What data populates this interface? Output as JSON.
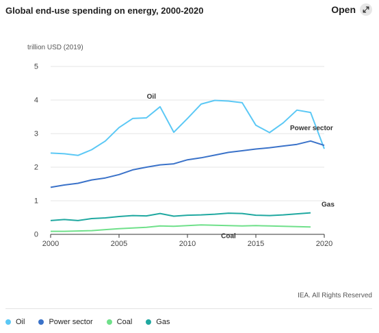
{
  "header": {
    "title": "Global end-use spending on energy, 2000-2020",
    "open_label": "Open",
    "open_icon": "expand-icon"
  },
  "footer": {
    "note": "IEA. All Rights Reserved"
  },
  "chart_data": {
    "type": "line",
    "title": "Global end-use spending on energy, 2000-2020",
    "ylabel": "trillion USD (2019)",
    "xlabel": "",
    "x": [
      2000,
      2001,
      2002,
      2003,
      2004,
      2005,
      2006,
      2007,
      2008,
      2009,
      2010,
      2011,
      2012,
      2013,
      2014,
      2015,
      2016,
      2017,
      2018,
      2019,
      2020
    ],
    "xlim": [
      2000,
      2020
    ],
    "ylim": [
      0,
      5
    ],
    "xticks": [
      2000,
      2005,
      2010,
      2015,
      2020
    ],
    "yticks": [
      0,
      1,
      2,
      3,
      4,
      5
    ],
    "grid": "horizontal",
    "legend": "bottom",
    "series": [
      {
        "name": "Oil",
        "color": "#5bc8f5",
        "values": [
          2.42,
          2.4,
          2.35,
          2.52,
          2.78,
          3.18,
          3.45,
          3.47,
          3.8,
          3.04,
          3.45,
          3.88,
          3.99,
          3.97,
          3.92,
          3.25,
          3.03,
          3.32,
          3.7,
          3.63,
          2.55
        ]
      },
      {
        "name": "Power sector",
        "color": "#3a72c9",
        "values": [
          1.4,
          1.47,
          1.52,
          1.62,
          1.68,
          1.78,
          1.92,
          2.0,
          2.07,
          2.1,
          2.22,
          2.28,
          2.36,
          2.44,
          2.49,
          2.54,
          2.58,
          2.63,
          2.68,
          2.78,
          2.65
        ]
      },
      {
        "name": "Coal",
        "color": "#6fe08a",
        "values": [
          0.09,
          0.09,
          0.1,
          0.11,
          0.14,
          0.17,
          0.19,
          0.21,
          0.25,
          0.24,
          0.26,
          0.28,
          0.27,
          0.26,
          0.25,
          0.26,
          0.25,
          0.24,
          0.23,
          0.22,
          null
        ]
      },
      {
        "name": "Gas",
        "color": "#1fa8a0",
        "values": [
          0.41,
          0.44,
          0.41,
          0.47,
          0.49,
          0.53,
          0.56,
          0.55,
          0.62,
          0.54,
          0.57,
          0.58,
          0.6,
          0.63,
          0.62,
          0.57,
          0.56,
          0.58,
          0.61,
          0.64,
          null
        ]
      }
    ],
    "annotations": [
      {
        "text": "Oil",
        "series": "Oil",
        "x": 2008
      },
      {
        "text": "Power sector",
        "series": "Power sector",
        "x": 2019
      },
      {
        "text": "Gas",
        "series": "Gas",
        "x": 2019
      },
      {
        "text": "Coal",
        "series": "Coal",
        "x": 2013
      }
    ]
  }
}
